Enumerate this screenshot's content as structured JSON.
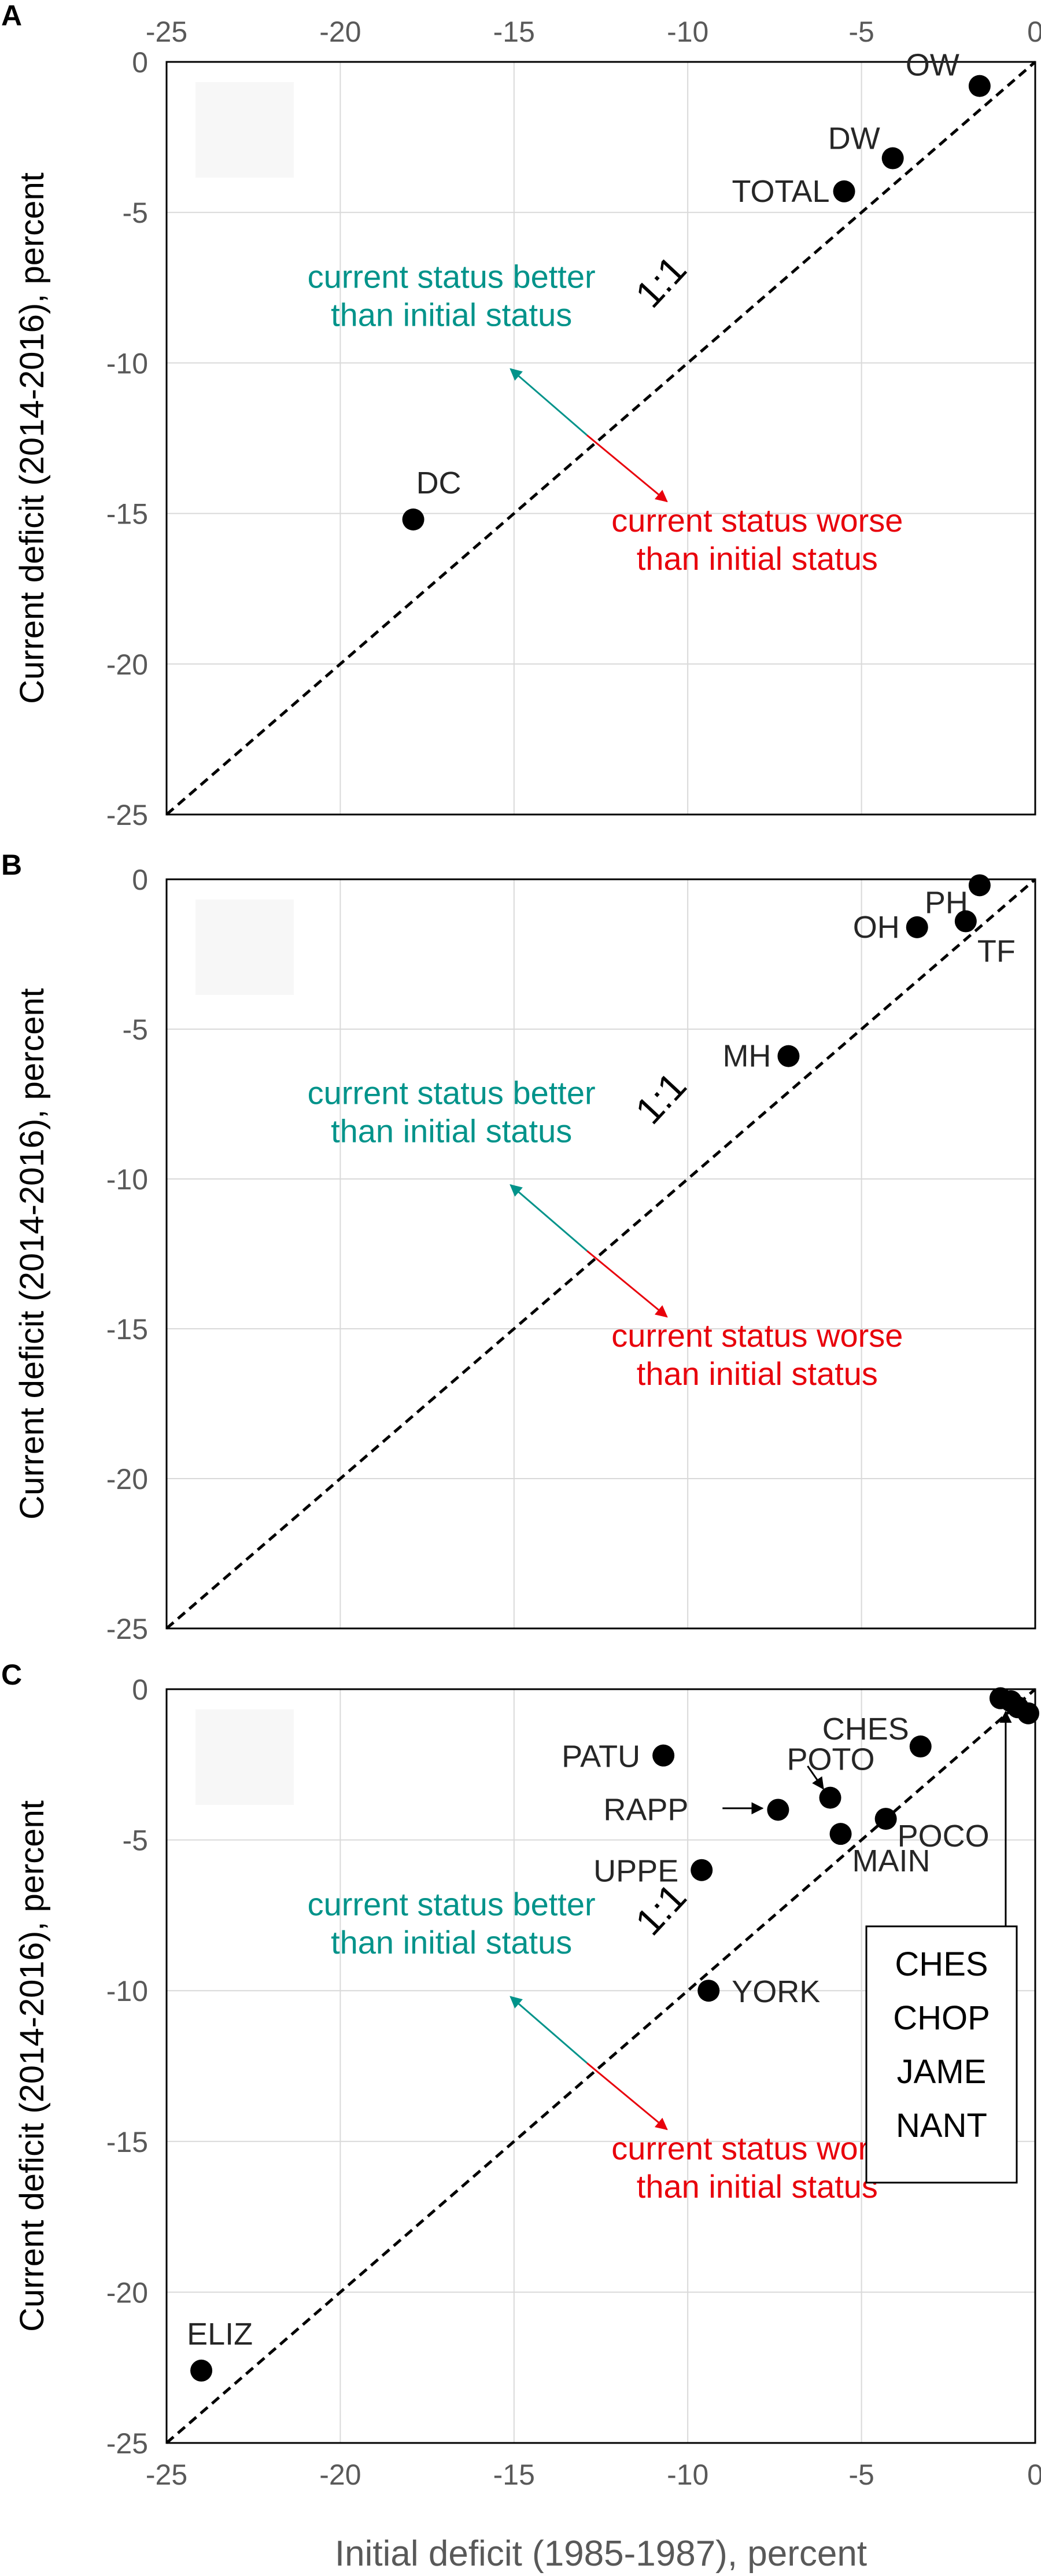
{
  "chart_data": [
    {
      "type": "scatter",
      "panel_label": "A",
      "ylabel": "Current deficit (2014-2016), percent",
      "xlabel": "",
      "xlim": [
        -25,
        0
      ],
      "ylim": [
        -25,
        0
      ],
      "x_tick_labels": [
        "-25",
        "-20",
        "-15",
        "-10",
        "-5",
        "0"
      ],
      "y_tick_labels": [
        "-25",
        "-20",
        "-15",
        "-10",
        "-5",
        "0"
      ],
      "grid": true,
      "one_to_one_label": "1:1",
      "better_label": [
        "current status better",
        "than initial status"
      ],
      "worse_label": [
        "current status worse",
        "than initial status"
      ],
      "points": [
        {
          "label": "OW",
          "x": -1.6,
          "y": -0.8
        },
        {
          "label": "DW",
          "x": -4.1,
          "y": -3.2
        },
        {
          "label": "TOTAL",
          "x": -5.5,
          "y": -4.3
        },
        {
          "label": "DC",
          "x": -17.9,
          "y": -15.2
        }
      ]
    },
    {
      "type": "scatter",
      "panel_label": "B",
      "ylabel": "Current deficit (2014-2016), percent",
      "xlabel": "",
      "xlim": [
        -25,
        0
      ],
      "ylim": [
        -25,
        0
      ],
      "x_tick_labels": [],
      "y_tick_labels": [
        "-25",
        "-20",
        "-15",
        "-10",
        "-5",
        "0"
      ],
      "grid": true,
      "one_to_one_label": "1:1",
      "better_label": [
        "current status better",
        "than initial status"
      ],
      "worse_label": [
        "current status worse",
        "than initial status"
      ],
      "points": [
        {
          "label": "PH",
          "x": -1.6,
          "y": -0.2
        },
        {
          "label": "OH",
          "x": -3.4,
          "y": -1.6
        },
        {
          "label": "TF",
          "x": -2.0,
          "y": -1.4
        },
        {
          "label": "MH",
          "x": -7.1,
          "y": -5.9
        }
      ]
    },
    {
      "type": "scatter",
      "panel_label": "C",
      "ylabel": "Current deficit (2014-2016), percent",
      "xlabel": "Initial deficit (1985-1987), percent",
      "xlim": [
        -25,
        0
      ],
      "ylim": [
        -25,
        0
      ],
      "x_tick_labels": [
        "-25",
        "-20",
        "-15",
        "-10",
        "-5",
        "0"
      ],
      "y_tick_labels": [
        "-25",
        "-20",
        "-15",
        "-10",
        "-5",
        "0"
      ],
      "grid": true,
      "one_to_one_label": "1:1",
      "better_label": [
        "current status better",
        "than initial status"
      ],
      "worse_label": [
        "current status worse",
        "than initial status"
      ],
      "points": [
        {
          "label": "PATU",
          "x": -10.7,
          "y": -2.2
        },
        {
          "label": "CHES",
          "x": -3.3,
          "y": -1.9
        },
        {
          "label": "POTO",
          "x": -5.9,
          "y": -3.6
        },
        {
          "label": "RAPP",
          "x": -7.4,
          "y": -4.0
        },
        {
          "label": "POCO",
          "x": -4.3,
          "y": -4.3
        },
        {
          "label": "MAIN",
          "x": -5.6,
          "y": -4.8
        },
        {
          "label": "UPPE",
          "x": -9.6,
          "y": -6.0
        },
        {
          "label": "YORK",
          "x": -9.4,
          "y": -10.0
        },
        {
          "label": "ELIZ",
          "x": -24.0,
          "y": -22.6
        },
        {
          "label": "",
          "x": -1.0,
          "y": -0.3
        },
        {
          "label": "",
          "x": -0.7,
          "y": -0.4
        },
        {
          "label": "",
          "x": -0.5,
          "y": -0.6
        },
        {
          "label": "",
          "x": -0.2,
          "y": -0.8
        }
      ],
      "legend_box": [
        "CHES",
        "CHOP",
        "JAME",
        "NANT"
      ]
    }
  ]
}
